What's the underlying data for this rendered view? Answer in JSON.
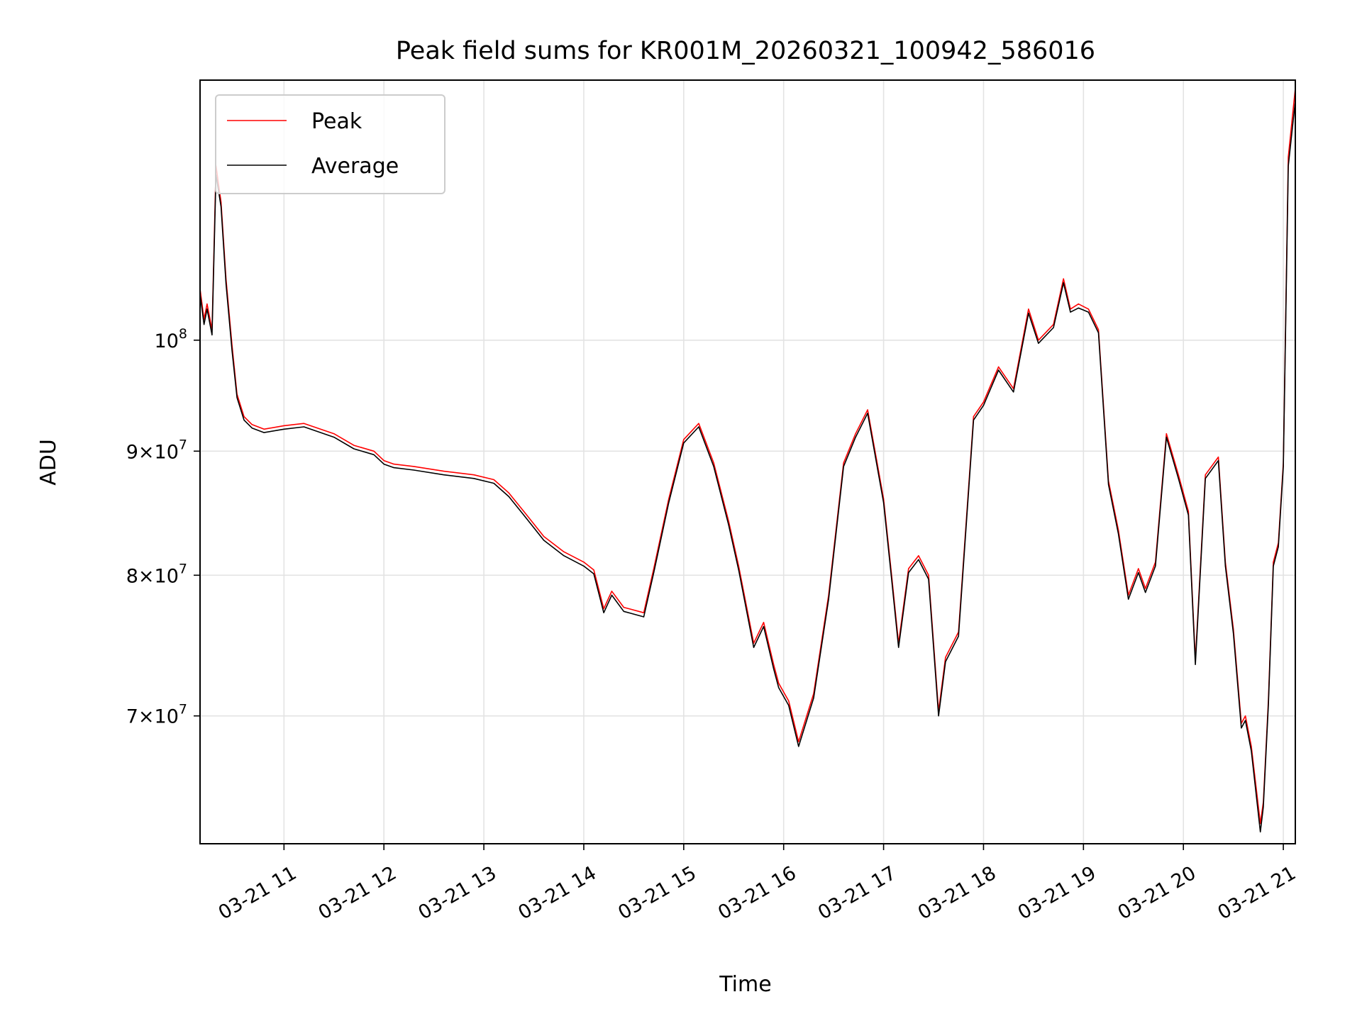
{
  "chart_data": {
    "type": "line",
    "title": "Peak field sums for KR001M_20260321_100942_586016",
    "xlabel": "Time",
    "ylabel": "ADU",
    "x_axis": {
      "unit": "hours (decimal, 2026-03-21)",
      "range": [
        10.16,
        21.12
      ],
      "ticks": [
        {
          "x": 11,
          "label": "03-21 11"
        },
        {
          "x": 12,
          "label": "03-21 12"
        },
        {
          "x": 13,
          "label": "03-21 13"
        },
        {
          "x": 14,
          "label": "03-21 14"
        },
        {
          "x": 15,
          "label": "03-21 15"
        },
        {
          "x": 16,
          "label": "03-21 16"
        },
        {
          "x": 17,
          "label": "03-21 17"
        },
        {
          "x": 18,
          "label": "03-21 18"
        },
        {
          "x": 19,
          "label": "03-21 19"
        },
        {
          "x": 20,
          "label": "03-21 20"
        },
        {
          "x": 21,
          "label": "03-21 21"
        }
      ]
    },
    "y_axis": {
      "scale": "log",
      "range": [
        62000000,
        128000000
      ],
      "ticks": [
        {
          "y": 100000000,
          "base": "10",
          "exp": "8",
          "mantissa": ""
        },
        {
          "y": 90000000,
          "base": "10",
          "exp": "7",
          "mantissa": "9"
        },
        {
          "y": 80000000,
          "base": "10",
          "exp": "7",
          "mantissa": "8"
        },
        {
          "y": 70000000,
          "base": "10",
          "exp": "7",
          "mantissa": "7"
        }
      ]
    },
    "grid": true,
    "legend": "upper left",
    "series": [
      {
        "name": "Peak",
        "color": "#ff0000",
        "x": [
          10.16,
          10.2,
          10.23,
          10.28,
          10.32,
          10.37,
          10.42,
          10.48,
          10.53,
          10.6,
          10.68,
          10.8,
          11.0,
          11.2,
          11.5,
          11.7,
          11.9,
          12.0,
          12.1,
          12.3,
          12.6,
          12.9,
          13.1,
          13.25,
          13.4,
          13.6,
          13.8,
          14.0,
          14.1,
          14.2,
          14.28,
          14.4,
          14.6,
          14.7,
          14.85,
          15.0,
          15.15,
          15.3,
          15.45,
          15.55,
          15.7,
          15.8,
          15.9,
          15.95,
          16.05,
          16.15,
          16.3,
          16.45,
          16.6,
          16.72,
          16.84,
          17.0,
          17.08,
          17.15,
          17.25,
          17.35,
          17.45,
          17.55,
          17.62,
          17.75,
          17.9,
          18.0,
          18.15,
          18.3,
          18.45,
          18.55,
          18.7,
          18.8,
          18.87,
          18.95,
          19.05,
          19.15,
          19.25,
          19.35,
          19.45,
          19.55,
          19.62,
          19.72,
          19.83,
          19.95,
          20.05,
          20.12,
          20.22,
          20.35,
          20.42,
          20.5,
          20.58,
          20.62,
          20.68,
          20.77,
          20.8,
          20.85,
          20.9,
          20.95,
          21.0,
          21.05,
          21.12
        ],
        "y": [
          105000000,
          102000000,
          103500000,
          101000000,
          118000000,
          114000000,
          106000000,
          99500000,
          95000000,
          93000000,
          92300000,
          91900000,
          92200000,
          92400000,
          91500000,
          90500000,
          90000000,
          89200000,
          88900000,
          88700000,
          88300000,
          88000000,
          87600000,
          86500000,
          85000000,
          83000000,
          81800000,
          81000000,
          80400000,
          77500000,
          78800000,
          77600000,
          77200000,
          80500000,
          86000000,
          91000000,
          92400000,
          89000000,
          84200000,
          80700000,
          75000000,
          76500000,
          73500000,
          72200000,
          71000000,
          68300000,
          71500000,
          78500000,
          89000000,
          91500000,
          93600000,
          86000000,
          80000000,
          75000000,
          80500000,
          81500000,
          80000000,
          70300000,
          74000000,
          75800000,
          93000000,
          94300000,
          97500000,
          95500000,
          103000000,
          100000000,
          101500000,
          106000000,
          103000000,
          103500000,
          103000000,
          101000000,
          87500000,
          83500000,
          78500000,
          80500000,
          79000000,
          81000000,
          91500000,
          88000000,
          85000000,
          73800000,
          88000000,
          89500000,
          81000000,
          76000000,
          69500000,
          70000000,
          68000000,
          63200000,
          64500000,
          71000000,
          81000000,
          82500000,
          89000000,
          119000000,
          127000000
        ]
      },
      {
        "name": "Average",
        "color": "#000000",
        "x": [
          10.16,
          10.2,
          10.23,
          10.28,
          10.32,
          10.37,
          10.42,
          10.48,
          10.53,
          10.6,
          10.68,
          10.8,
          11.0,
          11.2,
          11.5,
          11.7,
          11.9,
          12.0,
          12.1,
          12.3,
          12.6,
          12.9,
          13.1,
          13.25,
          13.4,
          13.6,
          13.8,
          14.0,
          14.1,
          14.2,
          14.28,
          14.4,
          14.6,
          14.7,
          14.85,
          15.0,
          15.15,
          15.3,
          15.45,
          15.55,
          15.7,
          15.8,
          15.9,
          15.95,
          16.05,
          16.15,
          16.3,
          16.45,
          16.6,
          16.72,
          16.84,
          17.0,
          17.08,
          17.15,
          17.25,
          17.35,
          17.45,
          17.55,
          17.62,
          17.75,
          17.9,
          18.0,
          18.15,
          18.3,
          18.45,
          18.55,
          18.7,
          18.8,
          18.87,
          18.95,
          19.05,
          19.15,
          19.25,
          19.35,
          19.45,
          19.55,
          19.62,
          19.72,
          19.83,
          19.95,
          20.05,
          20.12,
          20.22,
          20.35,
          20.42,
          20.5,
          20.58,
          20.62,
          20.68,
          20.77,
          20.8,
          20.85,
          20.9,
          20.95,
          21.0,
          21.05,
          21.12
        ],
        "y": [
          104500000,
          101500000,
          103000000,
          100500000,
          117000000,
          113500000,
          105500000,
          99000000,
          94700000,
          92700000,
          92000000,
          91600000,
          91900000,
          92100000,
          91200000,
          90200000,
          89700000,
          88900000,
          88600000,
          88400000,
          88000000,
          87700000,
          87300000,
          86200000,
          84700000,
          82700000,
          81500000,
          80700000,
          80100000,
          77200000,
          78500000,
          77300000,
          76900000,
          80200000,
          85700000,
          90700000,
          92100000,
          88700000,
          83900000,
          80400000,
          74700000,
          76200000,
          73200000,
          71900000,
          70700000,
          68000000,
          71200000,
          78200000,
          88700000,
          91200000,
          93300000,
          85700000,
          79700000,
          74700000,
          80200000,
          81200000,
          79700000,
          70000000,
          73700000,
          75500000,
          92700000,
          94000000,
          97200000,
          95200000,
          102600000,
          99700000,
          101200000,
          105600000,
          102700000,
          103100000,
          102700000,
          100700000,
          87200000,
          83200000,
          78200000,
          80200000,
          78700000,
          80700000,
          91200000,
          87700000,
          84700000,
          73500000,
          87700000,
          89200000,
          80700000,
          75700000,
          69200000,
          69700000,
          67700000,
          62700000,
          64200000,
          70700000,
          80700000,
          82200000,
          88700000,
          118000000,
          125500000
        ]
      }
    ]
  }
}
